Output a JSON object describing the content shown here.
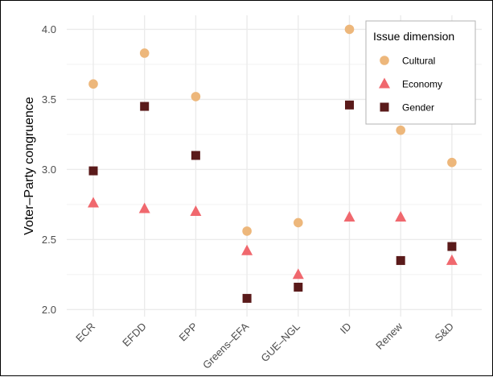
{
  "chart_data": {
    "type": "scatter",
    "title": "",
    "xlabel": "",
    "ylabel": "Voter–Party congruence",
    "categories": [
      "ECR",
      "EFDD",
      "EPP",
      "Greens–EFA",
      "GUE–NGL",
      "ID",
      "Renew",
      "S&D"
    ],
    "ylim": [
      1.95,
      4.1
    ],
    "yticks": [
      2.0,
      2.5,
      3.0,
      3.5,
      4.0
    ],
    "ytick_labels": [
      "2.0",
      "2.5",
      "3.0",
      "3.5",
      "4.0"
    ],
    "grid": true,
    "legend": {
      "title": "Issue dimension",
      "placement": "top-right"
    },
    "series": [
      {
        "name": "Cultural",
        "marker": "circle",
        "color": "#EDB77B",
        "values": [
          3.61,
          3.83,
          3.52,
          2.56,
          2.62,
          4.0,
          3.28,
          3.05
        ]
      },
      {
        "name": "Economy",
        "marker": "triangle",
        "color": "#F0686E",
        "values": [
          2.76,
          2.72,
          2.7,
          2.42,
          2.25,
          2.66,
          2.66,
          2.35
        ]
      },
      {
        "name": "Gender",
        "marker": "square",
        "color": "#5A1A1A",
        "values": [
          2.99,
          3.45,
          3.1,
          2.08,
          2.16,
          3.46,
          2.35,
          2.45
        ]
      }
    ]
  }
}
